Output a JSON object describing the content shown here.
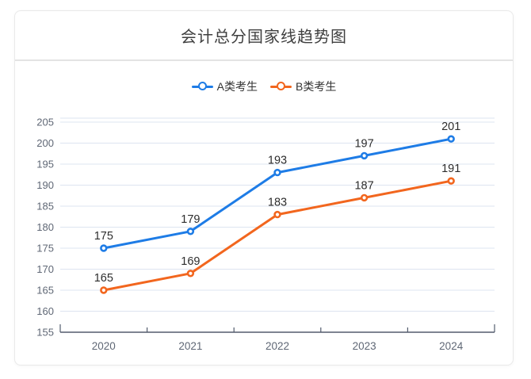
{
  "card": {
    "title": "会计总分国家线趋势图"
  },
  "chart_data": {
    "type": "line",
    "title": "会计总分国家线趋势图",
    "categories": [
      "2020",
      "2021",
      "2022",
      "2023",
      "2024"
    ],
    "series": [
      {
        "name": "A类考生",
        "color": "#1e7ce6",
        "values": [
          175,
          179,
          193,
          197,
          201
        ]
      },
      {
        "name": "B类考生",
        "color": "#f2661e",
        "values": [
          165,
          169,
          183,
          187,
          191
        ]
      }
    ],
    "ylim": [
      155,
      205
    ],
    "ytick_step": 5,
    "yticks": [
      155,
      160,
      165,
      170,
      175,
      180,
      185,
      190,
      195,
      200,
      205
    ],
    "grid": true,
    "data_labels": true,
    "legend_position": "top"
  },
  "colors": {
    "grid_line": "#dde4f0",
    "axis_line": "#535c6d",
    "axis_text": "#5f6775",
    "value_text": "#2d2d2d",
    "title_text": "#3f3f3f",
    "legend_text": "#333333",
    "card_border": "#e9e9e9",
    "series_a": "#1e7ce6",
    "series_b": "#f2661e"
  }
}
